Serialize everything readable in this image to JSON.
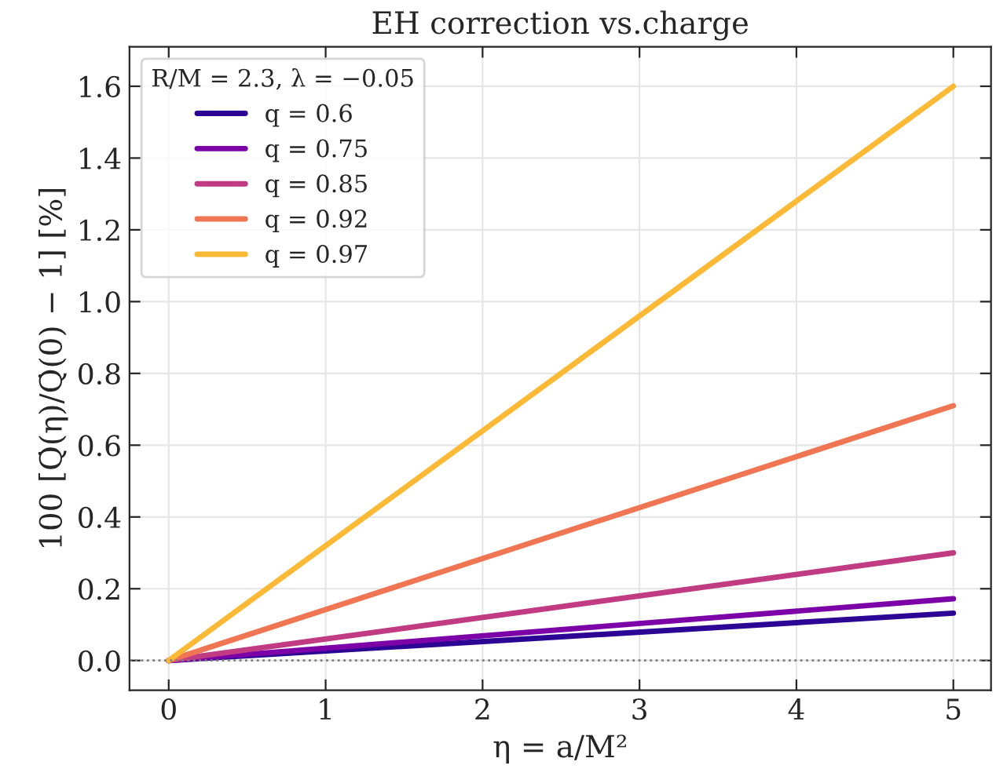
{
  "chart_data": {
    "type": "line",
    "title": "EH correction vs.charge",
    "xlabel": "η = a/M²",
    "ylabel": "100 [Q̇(η)/Q̇(0) − 1] [%]",
    "legend_title": "R/M = 2.3, λ = −0.05",
    "x": [
      0,
      5
    ],
    "series": [
      {
        "name": "q = 0.6",
        "color": "#2c0594",
        "values": [
          0,
          0.132
        ]
      },
      {
        "name": "q = 0.75",
        "color": "#7c02a8",
        "values": [
          0,
          0.172
        ]
      },
      {
        "name": "q = 0.85",
        "color": "#c13b82",
        "values": [
          0,
          0.3
        ]
      },
      {
        "name": "q = 0.92",
        "color": "#f07553",
        "values": [
          0,
          0.71
        ]
      },
      {
        "name": "q = 0.97",
        "color": "#fcb935",
        "values": [
          0,
          1.6
        ]
      }
    ],
    "ref_lines": [
      {
        "axis": "y",
        "value": 0,
        "color": "#808080",
        "line_style": "dotted"
      }
    ],
    "xlim": [
      -0.25,
      5.24
    ],
    "ylim": [
      -0.083,
      1.71
    ],
    "xticks": [
      0,
      1,
      2,
      3,
      4,
      5
    ],
    "yticks": [
      {
        "value": 0,
        "label": "0.0"
      },
      0.2,
      0.4,
      0.6,
      0.8,
      {
        "value": 1,
        "label": "1.0"
      },
      1.2,
      1.4,
      1.6
    ],
    "grid": true,
    "legend": "top left",
    "line_style": "solid",
    "marker": "none"
  }
}
